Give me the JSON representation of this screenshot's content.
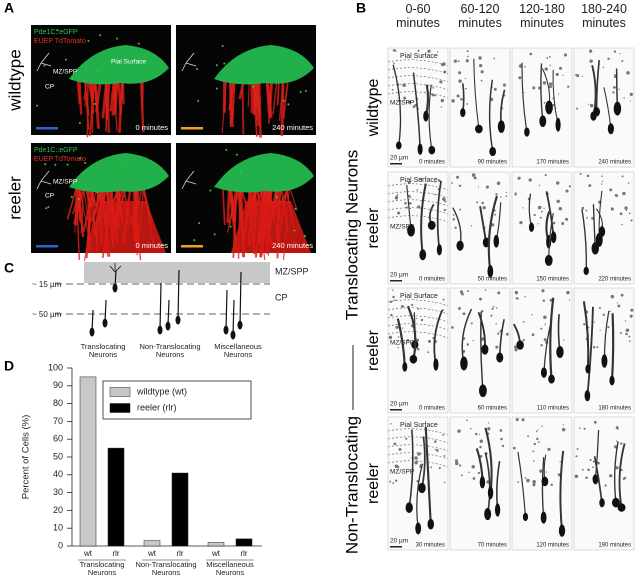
{
  "panel_a": {
    "label": "A",
    "rows": [
      {
        "label": "wildtype",
        "legend": [
          "Pde1C::eGFP",
          "EUEP TdTomato"
        ],
        "annotations": [
          "Pial Surface",
          "MZ/SPP",
          "CP"
        ],
        "times": [
          "0 minutes",
          "240 minutes"
        ]
      },
      {
        "label": "reeler",
        "legend": [
          "Pde1C::eGFP",
          "EUEP TdTomato"
        ],
        "annotations": [
          "MZ/SPP",
          "CP"
        ],
        "times": [
          "0 minutes",
          "240 minutes"
        ]
      }
    ]
  },
  "panel_b": {
    "label": "B",
    "columns": [
      "0-60 minutes",
      "60-120 minutes",
      "120-180 minutes",
      "180-240 minutes"
    ],
    "groups": [
      "Translocating Neurons",
      "Non-Translocating"
    ],
    "rows": [
      {
        "label": "wildtype",
        "annotations": [
          "Pial Surface",
          "MZ/SPP"
        ],
        "scale": "20 µm",
        "times": [
          "0 minutes",
          "90 minutes",
          "170 minutes",
          "240 minutes"
        ]
      },
      {
        "label": "reeler",
        "annotations": [
          "Pial Surface",
          "MZ/SPP"
        ],
        "scale": "20 µm",
        "times": [
          "0 minutes",
          "50 minutes",
          "150 minutes",
          "220 minutes"
        ]
      },
      {
        "label": "reeler",
        "annotations": [
          "Pial Surface",
          "MZ/SPP"
        ],
        "scale": "20 µm",
        "times": [
          "0 minutes",
          "60 minutes",
          "110 minutes",
          "180 minutes"
        ]
      },
      {
        "label": "reeler",
        "annotations": [
          "Pial Surface",
          "MZ/SPP"
        ],
        "scale": "20 µm",
        "times": [
          "30 minutes",
          "70 minutes",
          "120 minutes",
          "190 minutes"
        ]
      }
    ]
  },
  "panel_c": {
    "label": "C",
    "layers": [
      "MZ/SPP",
      "CP"
    ],
    "depths": [
      "~ 15 µm",
      "~ 50 µm"
    ],
    "types": [
      "Translocating Neurons",
      "Non-Translocating Neurons",
      "Miscellaneous Neurons"
    ]
  },
  "chart_data": {
    "type": "bar",
    "panel_label": "D",
    "y_label": "Percent of Cells (%)",
    "categories": [
      "Translocating Neurons",
      "Non-Translocating Neurons",
      "Miscellaneous Neurons"
    ],
    "bar_labels": [
      "wt",
      "rlr"
    ],
    "series": [
      {
        "name": "wildtype (wt)",
        "color": "#c8c8c8",
        "values": [
          95,
          3,
          2
        ]
      },
      {
        "name": "reeler (rlr)",
        "color": "#000000",
        "values": [
          55,
          41,
          4
        ]
      }
    ],
    "ylim": [
      0,
      100
    ],
    "yticks": [
      0,
      10,
      20,
      30,
      40,
      50,
      60,
      70,
      80,
      90,
      100
    ]
  }
}
